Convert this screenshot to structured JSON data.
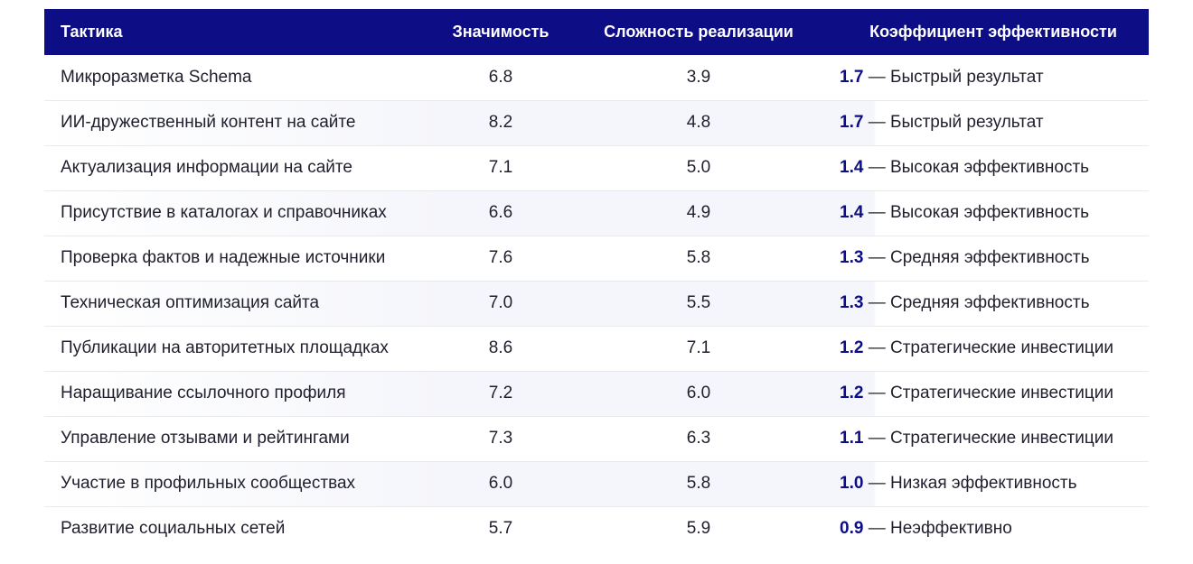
{
  "headers": {
    "tactic": "Тактика",
    "importance": "Значимость",
    "complexity": "Сложность реализации",
    "efficiency": "Коэффициент эффективности"
  },
  "rows": [
    {
      "tactic": "Микроразметка Schema",
      "importance": "6.8",
      "complexity": "3.9",
      "coef": "1.7",
      "label": " — Быстрый результат"
    },
    {
      "tactic": "ИИ-дружественный контент на сайте",
      "importance": "8.2",
      "complexity": "4.8",
      "coef": "1.7",
      "label": " — Быстрый результат"
    },
    {
      "tactic": "Актуализация информации на сайте",
      "importance": "7.1",
      "complexity": "5.0",
      "coef": "1.4",
      "label": " — Высокая эффективность"
    },
    {
      "tactic": "Присутствие в каталогах и справочниках",
      "importance": "6.6",
      "complexity": "4.9",
      "coef": "1.4",
      "label": " — Высокая эффективность"
    },
    {
      "tactic": "Проверка фактов и надежные источники",
      "importance": "7.6",
      "complexity": "5.8",
      "coef": "1.3",
      "label": " — Средняя эффективность"
    },
    {
      "tactic": "Техническая оптимизация сайта",
      "importance": "7.0",
      "complexity": "5.5",
      "coef": "1.3",
      "label": " — Средняя эффективность"
    },
    {
      "tactic": "Публикации на авторитетных площадках",
      "importance": "8.6",
      "complexity": "7.1",
      "coef": "1.2",
      "label": " — Стратегические инвестиции"
    },
    {
      "tactic": "Наращивание ссылочного профиля",
      "importance": "7.2",
      "complexity": "6.0",
      "coef": "1.2",
      "label": " — Стратегические инвестиции"
    },
    {
      "tactic": "Управление отзывами и рейтингами",
      "importance": "7.3",
      "complexity": "6.3",
      "coef": "1.1",
      "label": " — Стратегические инвестиции"
    },
    {
      "tactic": "Участие в профильных сообществах",
      "importance": "6.0",
      "complexity": "5.8",
      "coef": "1.0",
      "label": " — Низкая эффективность"
    },
    {
      "tactic": "Развитие социальных сетей",
      "importance": "5.7",
      "complexity": "5.9",
      "coef": "0.9",
      "label": " — Неэффективно"
    }
  ]
}
